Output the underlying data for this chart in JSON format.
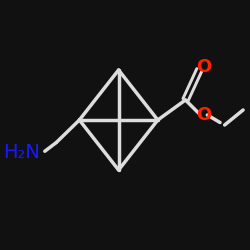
{
  "background_color": "#111111",
  "bond_color": "#000000",
  "o_color": "#ff2200",
  "n_color": "#1a1aff",
  "line_width": 2.5,
  "figsize": [
    2.5,
    2.5
  ],
  "dpi": 100,
  "nh2_label": "H₂N",
  "nh2_fontsize": 14,
  "o_fontsize": 13,
  "cage_line_color": "#111111",
  "bond_line_color": "#cccccc"
}
